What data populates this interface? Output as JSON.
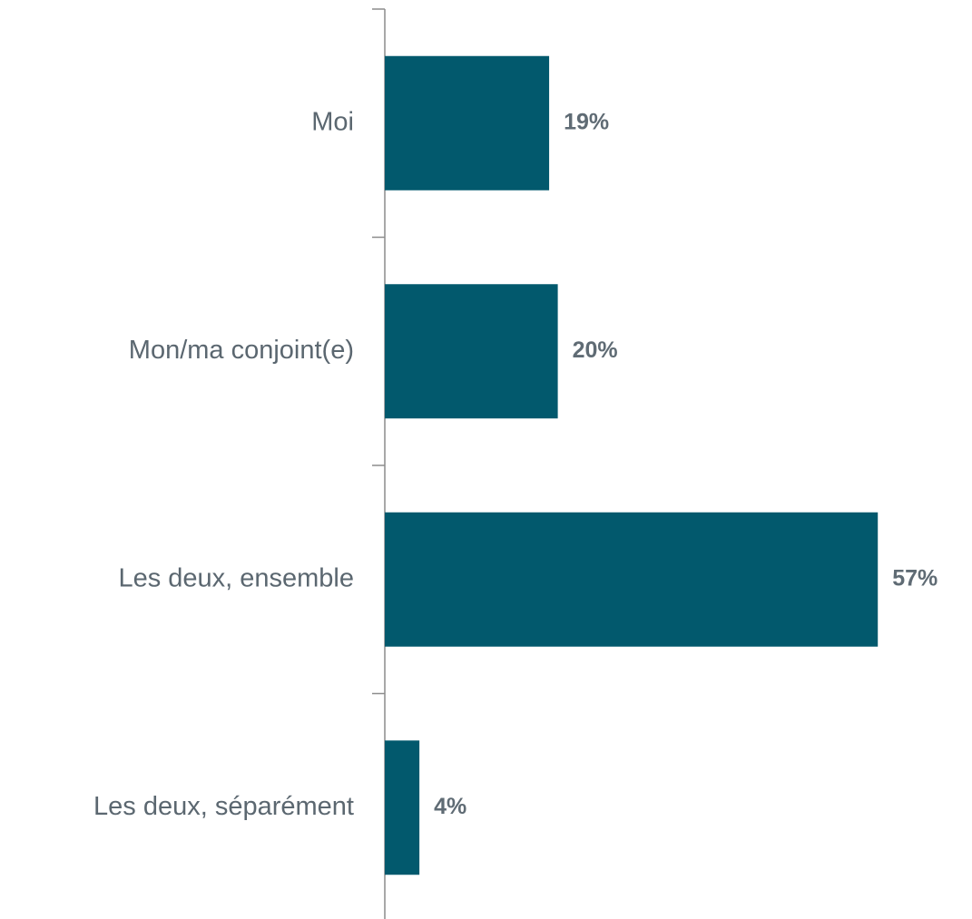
{
  "chart_data": {
    "type": "hbar",
    "categories": [
      "Moi",
      "Mon/ma conjoint(e)",
      "Les deux, ensemble",
      "Les deux, séparément"
    ],
    "values": [
      19,
      20,
      57,
      4
    ],
    "value_labels": [
      "19%",
      "20%",
      "57%",
      "4%"
    ],
    "color": "#02596d"
  }
}
